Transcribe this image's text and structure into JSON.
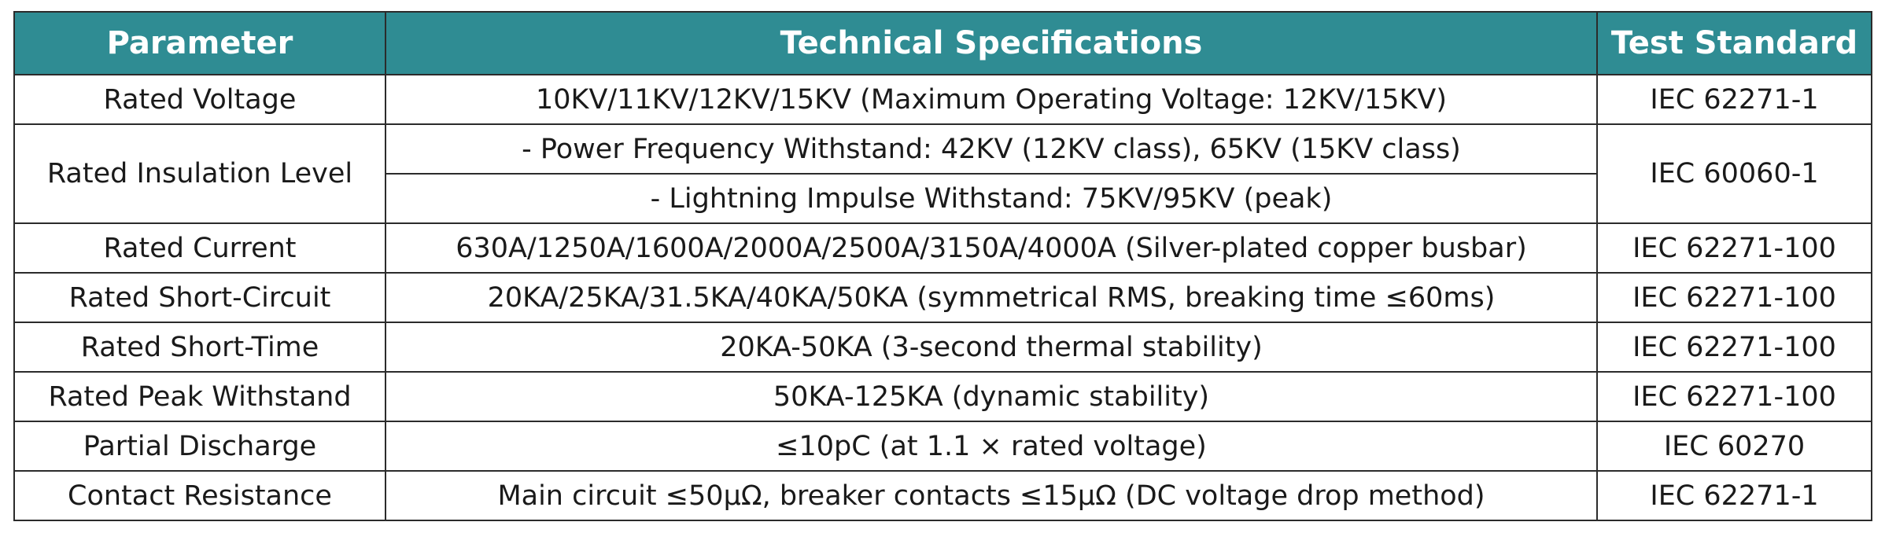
{
  "header": {
    "parameter": "Parameter",
    "technical_specifications": "Technical Specifications",
    "test_standard": "Test Standard"
  },
  "rows": [
    {
      "parameter": "Rated Voltage",
      "specifications": [
        "10KV/11KV/12KV/15KV (Maximum Operating Voltage: 12KV/15KV)"
      ],
      "standard": "IEC 62271-1"
    },
    {
      "parameter": "Rated Insulation Level",
      "specifications": [
        "- Power Frequency Withstand: 42KV (12KV class), 65KV (15KV class)",
        "- Lightning Impulse Withstand: 75KV/95KV (peak)"
      ],
      "standard": "IEC 60060-1"
    },
    {
      "parameter": "Rated Current",
      "specifications": [
        "630A/1250A/1600A/2000A/2500A/3150A/4000A (Silver-plated copper busbar)"
      ],
      "standard": "IEC 62271-100"
    },
    {
      "parameter": "Rated Short-Circuit",
      "specifications": [
        "20KA/25KA/31.5KA/40KA/50KA (symmetrical RMS, breaking time ≤60ms)"
      ],
      "standard": "IEC 62271-100"
    },
    {
      "parameter": "Rated Short-Time",
      "specifications": [
        "20KA-50KA (3-second thermal stability)"
      ],
      "standard": "IEC 62271-100"
    },
    {
      "parameter": "Rated Peak Withstand",
      "specifications": [
        "50KA-125KA (dynamic stability)"
      ],
      "standard": "IEC 62271-100"
    },
    {
      "parameter": "Partial Discharge",
      "specifications": [
        "≤10pC (at 1.1 × rated voltage)"
      ],
      "standard": "IEC 60270"
    },
    {
      "parameter": "Contact Resistance",
      "specifications": [
        "Main circuit ≤50μΩ, breaker contacts ≤15μΩ (DC voltage drop method)"
      ],
      "standard": "IEC 62271-1"
    }
  ],
  "colors": {
    "header_background": "#2f8c93",
    "header_text": "#ffffff",
    "border": "#2b2b2b"
  }
}
